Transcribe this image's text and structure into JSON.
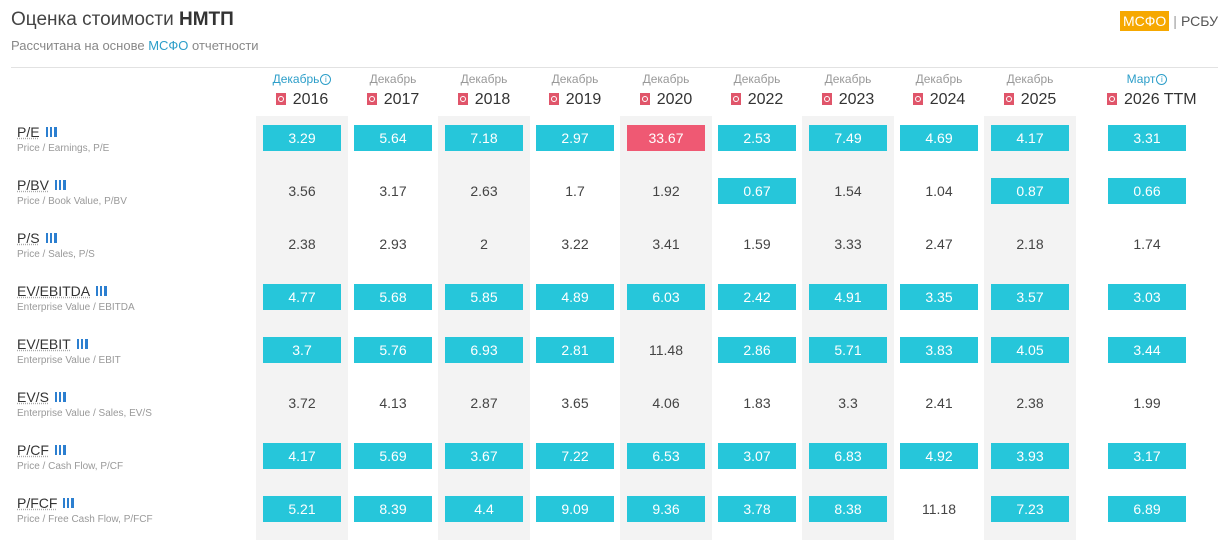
{
  "header": {
    "title_prefix": "Оценка стоимости ",
    "title_ticker": "НМТП",
    "subtitle_prefix": "Рассчитана на основе ",
    "subtitle_highlight": "МСФО",
    "subtitle_suffix": " отчетности",
    "standard_active": "МСФО",
    "standard_separator": "|",
    "standard_other": "РСБУ"
  },
  "columns": [
    {
      "period": "Декабрь",
      "year": "2016",
      "info": true
    },
    {
      "period": "Декабрь",
      "year": "2017",
      "info": false
    },
    {
      "period": "Декабрь",
      "year": "2018",
      "info": false
    },
    {
      "period": "Декабрь",
      "year": "2019",
      "info": false
    },
    {
      "period": "Декабрь",
      "year": "2020",
      "info": false
    },
    {
      "period": "Декабрь",
      "year": "2022",
      "info": false
    },
    {
      "period": "Декабрь",
      "year": "2023",
      "info": false
    },
    {
      "period": "Декабрь",
      "year": "2024",
      "info": false
    },
    {
      "period": "Декабрь",
      "year": "2025",
      "info": false
    },
    {
      "period": "Март",
      "year": "2026 TTM",
      "info": true
    }
  ],
  "rows": [
    {
      "code": "P/E",
      "desc": "Price / Earnings, P/E",
      "values": [
        "3.29",
        "5.64",
        "7.18",
        "2.97",
        "33.67",
        "2.53",
        "7.49",
        "4.69",
        "4.17",
        "3.31"
      ],
      "hl": [
        "c",
        "c",
        "c",
        "c",
        "r",
        "c",
        "c",
        "c",
        "c",
        "c"
      ]
    },
    {
      "code": "P/BV",
      "desc": "Price / Book Value, P/BV",
      "values": [
        "3.56",
        "3.17",
        "2.63",
        "1.7",
        "1.92",
        "0.67",
        "1.54",
        "1.04",
        "0.87",
        "0.66"
      ],
      "hl": [
        "",
        "",
        "",
        "",
        "",
        "c",
        "",
        "",
        "c",
        "c"
      ]
    },
    {
      "code": "P/S",
      "desc": "Price / Sales, P/S",
      "values": [
        "2.38",
        "2.93",
        "2",
        "3.22",
        "3.41",
        "1.59",
        "3.33",
        "2.47",
        "2.18",
        "1.74"
      ],
      "hl": [
        "",
        "",
        "",
        "",
        "",
        "",
        "",
        "",
        "",
        ""
      ]
    },
    {
      "code": "EV/EBITDA",
      "desc": "Enterprise Value / EBITDA",
      "values": [
        "4.77",
        "5.68",
        "5.85",
        "4.89",
        "6.03",
        "2.42",
        "4.91",
        "3.35",
        "3.57",
        "3.03"
      ],
      "hl": [
        "c",
        "c",
        "c",
        "c",
        "c",
        "c",
        "c",
        "c",
        "c",
        "c"
      ]
    },
    {
      "code": "EV/EBIT",
      "desc": "Enterprise Value / EBIT",
      "values": [
        "3.7",
        "5.76",
        "6.93",
        "2.81",
        "11.48",
        "2.86",
        "5.71",
        "3.83",
        "4.05",
        "3.44"
      ],
      "hl": [
        "c",
        "c",
        "c",
        "c",
        "",
        "c",
        "c",
        "c",
        "c",
        "c"
      ]
    },
    {
      "code": "EV/S",
      "desc": "Enterprise Value / Sales, EV/S",
      "values": [
        "3.72",
        "4.13",
        "2.87",
        "3.65",
        "4.06",
        "1.83",
        "3.3",
        "2.41",
        "2.38",
        "1.99"
      ],
      "hl": [
        "",
        "",
        "",
        "",
        "",
        "",
        "",
        "",
        "",
        ""
      ]
    },
    {
      "code": "P/CF",
      "desc": "Price / Cash Flow, P/CF",
      "values": [
        "4.17",
        "5.69",
        "3.67",
        "7.22",
        "6.53",
        "3.07",
        "6.83",
        "4.92",
        "3.93",
        "3.17"
      ],
      "hl": [
        "c",
        "c",
        "c",
        "c",
        "c",
        "c",
        "c",
        "c",
        "c",
        "c"
      ]
    },
    {
      "code": "P/FCF",
      "desc": "Price / Free Cash Flow, P/FCF",
      "values": [
        "5.21",
        "8.39",
        "4.4",
        "9.09",
        "9.36",
        "3.78",
        "8.38",
        "11.18",
        "7.23",
        "6.89"
      ],
      "hl": [
        "c",
        "c",
        "c",
        "c",
        "c",
        "c",
        "c",
        "",
        "c",
        "c"
      ]
    }
  ],
  "colors": {
    "cyan": "#26c6da",
    "red": "#ef5973",
    "accent": "#f6a800",
    "link": "#2c9ec9"
  }
}
